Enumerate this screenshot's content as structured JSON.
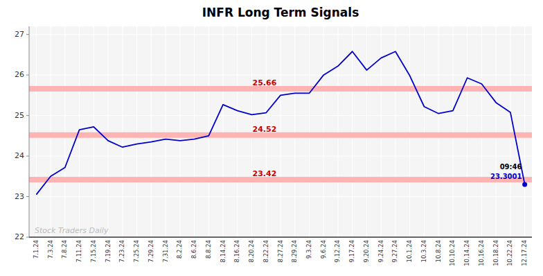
{
  "chart_data": {
    "type": "line",
    "title": "INFR Long Term Signals",
    "categories": [
      "7.1.24",
      "7.3.24",
      "7.8.24",
      "7.11.24",
      "7.15.24",
      "7.19.24",
      "7.23.24",
      "7.25.24",
      "7.29.24",
      "7.31.24",
      "8.2.24",
      "8.6.24",
      "8.8.24",
      "8.14.24",
      "8.16.24",
      "8.20.24",
      "8.22.24",
      "8.27.24",
      "8.29.24",
      "9.3.24",
      "9.6.24",
      "9.12.24",
      "9.17.24",
      "9.20.24",
      "9.24.24",
      "9.27.24",
      "10.1.24",
      "10.3.24",
      "10.8.24",
      "10.10.24",
      "10.14.24",
      "10.16.24",
      "10.18.24",
      "10.22.24",
      "12.17.24"
    ],
    "values": [
      23.05,
      23.5,
      23.72,
      24.65,
      24.72,
      24.38,
      24.22,
      24.3,
      24.35,
      24.42,
      24.38,
      24.42,
      24.5,
      25.27,
      25.12,
      25.02,
      25.07,
      25.5,
      25.55,
      25.55,
      26.0,
      26.22,
      26.58,
      26.12,
      26.42,
      26.58,
      25.98,
      25.22,
      25.05,
      25.12,
      25.93,
      25.78,
      25.32,
      25.08,
      23.3001
    ],
    "color": "#0000cc",
    "ylim": [
      22.0,
      27.2
    ],
    "yticks": [
      22,
      23,
      24,
      25,
      26,
      27
    ],
    "grid": true,
    "signal_lines": [
      25.66,
      24.52,
      23.42
    ],
    "signal_color": "#ffb3b3",
    "signal_label_color": "#cc0000",
    "annotations": [
      "09:46",
      "23.3001"
    ],
    "watermark": "Stock Traders Daily"
  }
}
